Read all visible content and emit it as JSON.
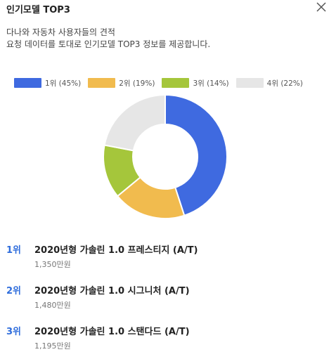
{
  "header": {
    "title": "인기모델 TOP3",
    "close_icon": "close-icon"
  },
  "description": {
    "line1": "다나와 자동차 사용자들의 견적",
    "line2": "요청 데이터를 토대로 인기모델 TOP3 정보를 제공합니다."
  },
  "chart_data": {
    "type": "pie",
    "donut": true,
    "categories": [
      "1위 (45%)",
      "2위 (19%)",
      "3위 (14%)",
      "4위 (22%)"
    ],
    "values": [
      45,
      19,
      14,
      22
    ],
    "colors": [
      "#3f6ae0",
      "#f1bb4e",
      "#a5c63b",
      "#e6e6e6"
    ],
    "legend_position": "top"
  },
  "models": [
    {
      "rank": "1위",
      "name": "2020년형 가솔린 1.0 프레스티지 (A/T)",
      "price": "1,350만원"
    },
    {
      "rank": "2위",
      "name": "2020년형 가솔린 1.0 시그니처 (A/T)",
      "price": "1,480만원"
    },
    {
      "rank": "3위",
      "name": "2020년형 가솔린 1.0 스탠다드 (A/T)",
      "price": "1,195만원"
    }
  ]
}
